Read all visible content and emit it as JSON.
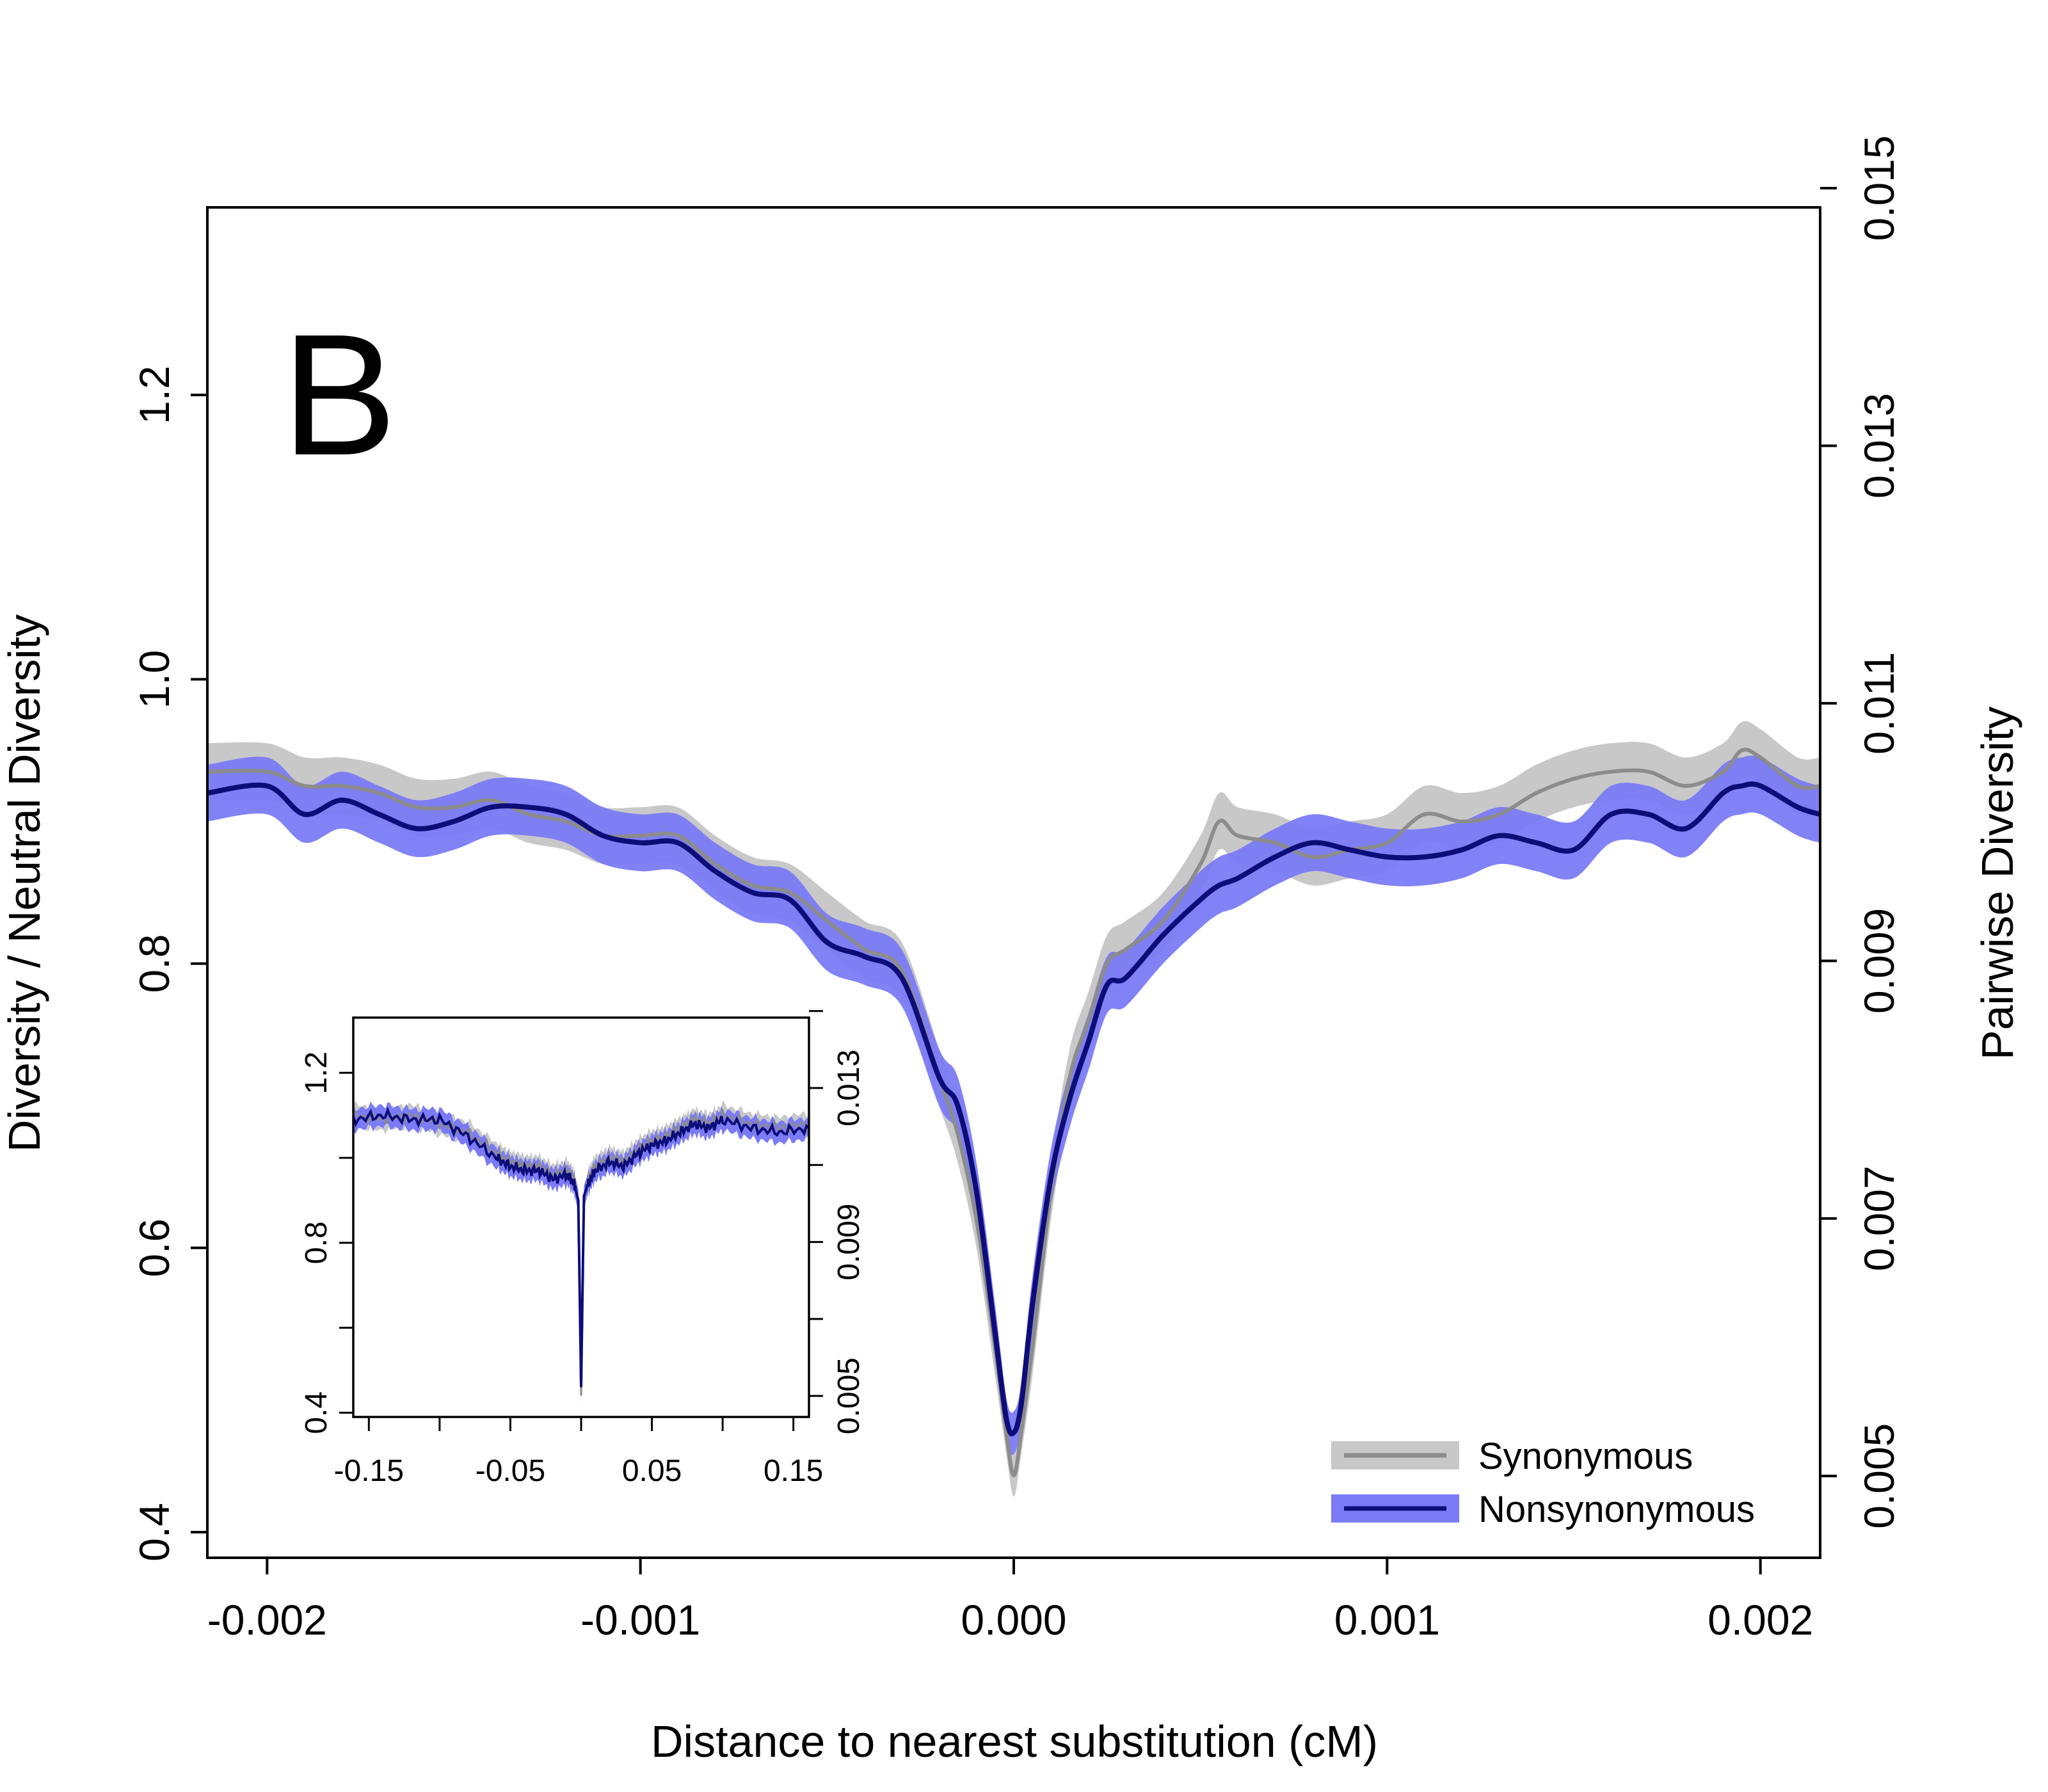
{
  "chart_data": [
    {
      "type": "area",
      "panel_label": "B",
      "xlabel": "Distance to nearest substitution (cM)",
      "ylabel": "Diversity / Neutral Diversity",
      "y2label": "Pairwise Diversity",
      "xlim": [
        -0.00216,
        0.00216
      ],
      "ylim": [
        0.382,
        1.332
      ],
      "x_ticks": [
        -0.002,
        -0.001,
        0.0,
        0.001,
        0.002
      ],
      "x_tick_labels": [
        "-0.002",
        "-0.001",
        "0.000",
        "0.001",
        "0.002"
      ],
      "y_ticks": [
        0.4,
        0.6,
        0.8,
        1.0,
        1.2
      ],
      "y_tick_labels": [
        "0.4",
        "0.6",
        "0.8",
        "1.0",
        "1.2"
      ],
      "y2_ticks": [
        0.005,
        0.007,
        0.009,
        0.011,
        0.013,
        0.015
      ],
      "y2_tick_labels": [
        "0.005",
        "0.007",
        "0.009",
        "0.011",
        "0.013",
        "0.015"
      ],
      "y2_to_y": {
        "slope": 90.6,
        "intercept": -0.0135
      },
      "grid": false,
      "legend": {
        "position": "bottom-right",
        "entries": [
          "Synonymous",
          "Nonsynonymous"
        ]
      },
      "x": [
        -0.00216,
        -0.002,
        -0.0019,
        -0.0018,
        -0.0017,
        -0.0016,
        -0.0015,
        -0.0014,
        -0.0013,
        -0.0012,
        -0.0011,
        -0.001,
        -0.0009,
        -0.0008,
        -0.0007,
        -0.0006,
        -0.0005,
        -0.0004,
        -0.0003,
        -0.0002,
        -0.00015,
        -0.0001,
        -5e-05,
        -2e-05,
        0.0,
        2e-05,
        5e-05,
        0.0001,
        0.00015,
        0.0002,
        0.00025,
        0.0003,
        0.0004,
        0.0005,
        0.00055,
        0.0006,
        0.0007,
        0.0008,
        0.0009,
        0.001,
        0.0011,
        0.0012,
        0.0013,
        0.0014,
        0.0015,
        0.0016,
        0.0017,
        0.0018,
        0.0019,
        0.00195,
        0.002,
        0.0021,
        0.00216
      ],
      "series": [
        {
          "name": "Synonymous",
          "line_color": "#8c8c8c",
          "band_color": "#c8c8c8",
          "values": [
            0.935,
            0.935,
            0.925,
            0.925,
            0.92,
            0.91,
            0.91,
            0.915,
            0.905,
            0.9,
            0.89,
            0.89,
            0.89,
            0.87,
            0.855,
            0.85,
            0.83,
            0.81,
            0.795,
            0.72,
            0.68,
            0.62,
            0.53,
            0.47,
            0.44,
            0.47,
            0.53,
            0.64,
            0.72,
            0.76,
            0.8,
            0.81,
            0.83,
            0.87,
            0.9,
            0.89,
            0.885,
            0.875,
            0.88,
            0.885,
            0.905,
            0.9,
            0.905,
            0.92,
            0.93,
            0.935,
            0.935,
            0.925,
            0.935,
            0.95,
            0.945,
            0.925,
            0.925
          ],
          "band_half_width": [
            0.02,
            0.02,
            0.02,
            0.02,
            0.02,
            0.02,
            0.02,
            0.02,
            0.02,
            0.02,
            0.02,
            0.02,
            0.02,
            0.02,
            0.02,
            0.02,
            0.02,
            0.02,
            0.02,
            0.02,
            0.02,
            0.02,
            0.02,
            0.015,
            0.015,
            0.015,
            0.02,
            0.02,
            0.02,
            0.02,
            0.02,
            0.02,
            0.02,
            0.02,
            0.02,
            0.02,
            0.02,
            0.02,
            0.02,
            0.02,
            0.02,
            0.02,
            0.02,
            0.02,
            0.02,
            0.02,
            0.02,
            0.02,
            0.02,
            0.02,
            0.02,
            0.02,
            0.02
          ]
        },
        {
          "name": "Nonsynonymous",
          "line_color": "#0d0d7a",
          "band_color": "#7b7bf7",
          "values": [
            0.92,
            0.925,
            0.905,
            0.915,
            0.905,
            0.895,
            0.9,
            0.91,
            0.91,
            0.905,
            0.89,
            0.885,
            0.885,
            0.865,
            0.85,
            0.845,
            0.815,
            0.805,
            0.79,
            0.72,
            0.7,
            0.64,
            0.54,
            0.48,
            0.47,
            0.49,
            0.56,
            0.65,
            0.705,
            0.745,
            0.785,
            0.79,
            0.82,
            0.845,
            0.855,
            0.86,
            0.875,
            0.885,
            0.88,
            0.875,
            0.875,
            0.88,
            0.89,
            0.885,
            0.88,
            0.905,
            0.905,
            0.895,
            0.92,
            0.925,
            0.925,
            0.91,
            0.905
          ],
          "band_half_width": [
            0.02,
            0.02,
            0.02,
            0.02,
            0.02,
            0.02,
            0.02,
            0.02,
            0.02,
            0.02,
            0.02,
            0.02,
            0.02,
            0.02,
            0.02,
            0.02,
            0.02,
            0.02,
            0.02,
            0.02,
            0.02,
            0.02,
            0.02,
            0.015,
            0.015,
            0.015,
            0.02,
            0.02,
            0.02,
            0.02,
            0.02,
            0.02,
            0.02,
            0.02,
            0.02,
            0.02,
            0.02,
            0.02,
            0.02,
            0.02,
            0.02,
            0.02,
            0.02,
            0.02,
            0.02,
            0.02,
            0.02,
            0.02,
            0.02,
            0.02,
            0.02,
            0.02,
            0.02
          ]
        }
      ]
    },
    {
      "type": "area",
      "inset": true,
      "xlim": [
        -0.161,
        0.161
      ],
      "ylim": [
        0.39,
        1.33
      ],
      "x_ticks": [
        -0.15,
        -0.1,
        -0.05,
        0.0,
        0.05,
        0.1,
        0.15
      ],
      "x_tick_labels": [
        "-0.15",
        "",
        "-0.05",
        "",
        "0.05",
        "",
        "0.15"
      ],
      "y_ticks": [
        0.4,
        0.6,
        0.8,
        1.0,
        1.2
      ],
      "y_tick_labels": [
        "0.4",
        "",
        "0.8",
        "",
        "1.2"
      ],
      "y2_ticks": [
        0.005,
        0.007,
        0.009,
        0.011,
        0.013,
        0.015
      ],
      "y2_tick_labels": [
        "0.005",
        "",
        "0.009",
        "",
        "0.013",
        ""
      ],
      "x": [
        -0.161,
        -0.14,
        -0.12,
        -0.1,
        -0.08,
        -0.06,
        -0.05,
        -0.04,
        -0.03,
        -0.02,
        -0.01,
        -0.005,
        -0.002,
        0.0,
        0.002,
        0.005,
        0.01,
        0.02,
        0.03,
        0.04,
        0.05,
        0.06,
        0.07,
        0.08,
        0.09,
        0.1,
        0.12,
        0.14,
        0.161
      ],
      "series": [
        {
          "name": "Synonymous",
          "values": [
            1.1,
            1.09,
            1.1,
            1.08,
            1.06,
            1.01,
            0.99,
            0.98,
            0.98,
            0.96,
            0.97,
            0.95,
            0.9,
            0.44,
            0.9,
            0.95,
            0.98,
            1.0,
            0.99,
            1.02,
            1.04,
            1.05,
            1.07,
            1.09,
            1.08,
            1.1,
            1.08,
            1.07,
            1.08
          ]
        },
        {
          "name": "Nonsynonymous",
          "values": [
            1.09,
            1.1,
            1.09,
            1.09,
            1.05,
            1.0,
            0.98,
            0.97,
            0.97,
            0.95,
            0.96,
            0.94,
            0.9,
            0.46,
            0.91,
            0.94,
            0.97,
            0.99,
            0.98,
            1.01,
            1.03,
            1.04,
            1.06,
            1.08,
            1.07,
            1.09,
            1.07,
            1.06,
            1.07
          ]
        }
      ]
    }
  ]
}
